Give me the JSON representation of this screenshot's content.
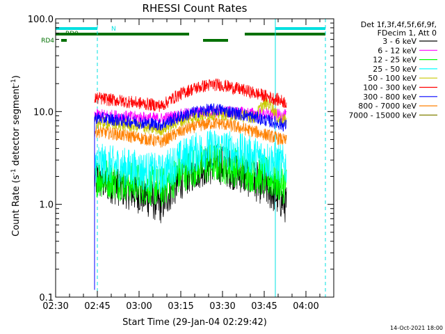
{
  "chart_data": {
    "type": "line",
    "title": "RHESSI Count Rates",
    "xlabel": "Start Time (29-Jan-04 02:29:42)",
    "ylabel": "Count Rate (s",
    "ylabel_sup": "-1",
    "ylabel_mid": " detector segment",
    "ylabel_sup2": "-1",
    "ylabel_end": ")",
    "y_scale": "log",
    "ylim": [
      0.1,
      100.0
    ],
    "y_ticks": [
      {
        "value": 0.1,
        "label": "0.1"
      },
      {
        "value": 1.0,
        "label": "1.0"
      },
      {
        "value": 10.0,
        "label": "10.0"
      },
      {
        "value": 100.0,
        "label": "100.0"
      }
    ],
    "xlim_minutes": [
      0,
      100
    ],
    "x_ticks": [
      {
        "minute": 0,
        "label": "02:30"
      },
      {
        "minute": 15,
        "label": "02:45"
      },
      {
        "minute": 30,
        "label": "03:00"
      },
      {
        "minute": 45,
        "label": "03:15"
      },
      {
        "minute": 60,
        "label": "03:30"
      },
      {
        "minute": 75,
        "label": "03:45"
      },
      {
        "minute": 90,
        "label": "04:00"
      }
    ],
    "legend_header": [
      "Det 1f,3f,4f,5f,6f,9f,",
      "FDecim 1, Att 0"
    ],
    "legend_placement": "right",
    "data_start_minute": 14,
    "data_end_minute": 83,
    "spike_value": 0.12,
    "series": [
      {
        "name": "3 - 6 keV",
        "color": "#000000",
        "start": 1.9,
        "dip": 1.0,
        "peak": 2.7,
        "end": 1.0
      },
      {
        "name": "6 - 12 keV",
        "color": "#ff00ff",
        "start": 9.2,
        "dip": 8.3,
        "peak": 10.0,
        "end": 9.0
      },
      {
        "name": "12 - 25 keV",
        "color": "#00ff00",
        "start": 2.0,
        "dip": 1.5,
        "peak": 2.8,
        "end": 1.6
      },
      {
        "name": "25 - 50 keV",
        "color": "#00ffff",
        "start": 2.8,
        "dip": 2.1,
        "peak": 4.0,
        "end": 2.6
      },
      {
        "name": "50 - 100 keV",
        "color": "#c8c800",
        "start": 7.8,
        "dip": 6.4,
        "peak": 9.5,
        "end": 8.0
      },
      {
        "name": "100 - 300 keV",
        "color": "#ff0000",
        "start": 14.0,
        "dip": 11.5,
        "peak": 19.5,
        "end": 12.5
      },
      {
        "name": "300 - 800 keV",
        "color": "#0000ff",
        "start": 8.6,
        "dip": 7.2,
        "peak": 10.5,
        "end": 7.0
      },
      {
        "name": "800 - 7000 keV",
        "color": "#ff8000",
        "start": 6.2,
        "dip": 4.7,
        "peak": 7.5,
        "end": 4.8
      },
      {
        "name": "7000 - 15000 keV",
        "color": "#808000",
        "start": null,
        "dip": null,
        "peak": null,
        "end": null
      }
    ],
    "flag_bars": {
      "color_night": "#00e0e0",
      "color_rd": "#007000",
      "night_label": "N",
      "rd0_label": "RD0",
      "rd4_label": "RD4",
      "night_intervals": [
        [
          0,
          15
        ],
        [
          79,
          97
        ]
      ],
      "rd0_intervals": [
        [
          0,
          48
        ],
        [
          53,
          62
        ],
        [
          68,
          97
        ]
      ],
      "rd4_intervals": [
        [
          2,
          4
        ]
      ],
      "night_vlines_solid": [
        0,
        79
      ],
      "night_vlines_dashed": [
        15,
        97
      ]
    },
    "timestamp": "14-Oct-2021 18:00"
  }
}
